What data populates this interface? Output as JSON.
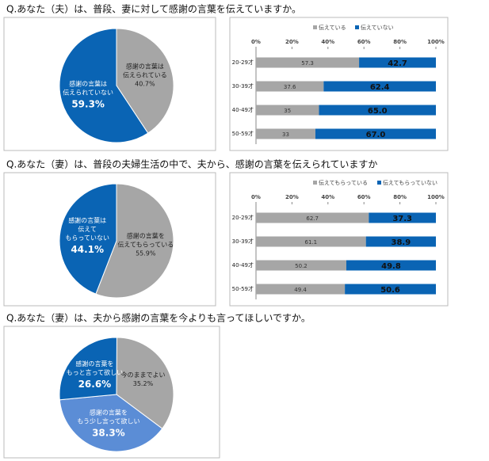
{
  "chart_data": [
    {
      "type": "pie",
      "title": "Q.あなた（夫）は、普段、妻に対して感謝の言葉を伝えていますか。",
      "categories": [
        [
          "感謝の言葉は",
          "伝えられている"
        ],
        [
          "感謝の言葉は",
          "伝えられていない"
        ]
      ],
      "values": [
        40.7,
        59.3
      ],
      "value_labels": [
        "40.7%",
        "59.3%"
      ],
      "colors": [
        "#a6a6a6",
        "#0a64b4"
      ]
    },
    {
      "type": "bar",
      "categories": [
        "20-29才",
        "30-39才",
        "40-49才",
        "50-59才"
      ],
      "series": [
        {
          "name": "伝えている",
          "color": "#a6a6a6",
          "values": [
            57.3,
            37.6,
            35,
            33
          ]
        },
        {
          "name": "伝えていない",
          "color": "#0a64b4",
          "values": [
            42.7,
            62.4,
            65.0,
            67.0
          ],
          "value_labels": [
            "42.7",
            "62.4",
            "65.0",
            "67.0"
          ]
        }
      ],
      "xlim": [
        0,
        100
      ],
      "xticks": [
        {
          "value": 0,
          "label": "0%"
        },
        {
          "value": 20,
          "label": "20%"
        },
        {
          "value": 40,
          "label": "40%"
        },
        {
          "value": 60,
          "label": "60%"
        },
        {
          "value": 80,
          "label": "80%"
        },
        {
          "value": 100,
          "label": "100%"
        }
      ]
    },
    {
      "type": "pie",
      "title": "Q.あなた（妻）は、普段の夫婦生活の中で、夫から、感謝の言葉を伝えられていますか",
      "categories": [
        [
          "感謝の言葉を",
          "伝えてもらっている"
        ],
        [
          "感謝の言葉は",
          "伝えて",
          "もらっていない"
        ]
      ],
      "values": [
        55.9,
        44.1
      ],
      "value_labels": [
        "55.9%",
        "44.1%"
      ],
      "colors": [
        "#a6a6a6",
        "#0a64b4"
      ]
    },
    {
      "type": "bar",
      "categories": [
        "20-29才",
        "30-39才",
        "40-49才",
        "50-59才"
      ],
      "series": [
        {
          "name": "伝えてもらっている",
          "color": "#a6a6a6",
          "values": [
            62.7,
            61.1,
            50.2,
            49.4
          ]
        },
        {
          "name": "伝えてもらっていない",
          "color": "#0a64b4",
          "values": [
            37.3,
            38.9,
            49.8,
            50.6
          ]
        }
      ],
      "xlim": [
        0,
        100
      ],
      "xticks": [
        {
          "value": 0,
          "label": "0%"
        },
        {
          "value": 20,
          "label": "20%"
        },
        {
          "value": 40,
          "label": "40%"
        },
        {
          "value": 60,
          "label": "60%"
        },
        {
          "value": 80,
          "label": "80%"
        },
        {
          "value": 100,
          "label": "100%"
        }
      ]
    },
    {
      "type": "pie",
      "title": "Q.あなた（妻）は、夫から感謝の言葉を今よりも言ってほしいですか。",
      "categories": [
        [
          "今のままでよい"
        ],
        [
          "感謝の言葉を",
          "もう少し言って欲しい"
        ],
        [
          "感謝の言葉を",
          "もっと言って欲しい"
        ]
      ],
      "values": [
        35.2,
        38.3,
        26.6
      ],
      "value_labels": [
        "35.2%",
        "38.3%",
        "26.6%"
      ],
      "colors": [
        "#a6a6a6",
        "#5b8dd6",
        "#0a64b4"
      ]
    }
  ]
}
